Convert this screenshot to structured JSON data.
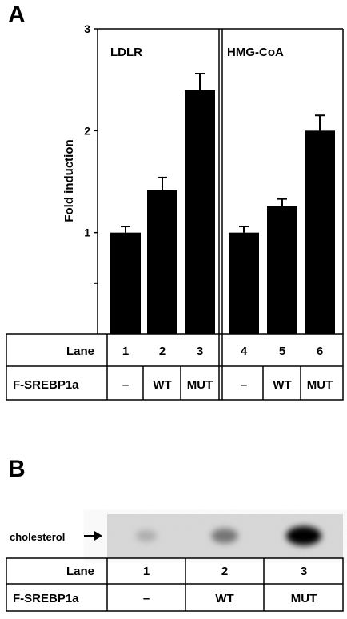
{
  "panel_a": {
    "letter": "A",
    "ylabel": "Fold induction",
    "yticks": [
      "1",
      "2",
      "3"
    ],
    "row_lane_label": "Lane",
    "row_construct_label": "F-SREBP1a",
    "lanes": [
      "1",
      "2",
      "3",
      "4",
      "5",
      "6"
    ],
    "constructs": [
      "–",
      "WT",
      "MUT",
      "–",
      "WT",
      "MUT"
    ]
  },
  "chart_data": {
    "type": "bar",
    "ylim": [
      0,
      3
    ],
    "ylabel": "Fold induction",
    "groups": [
      {
        "name": "LDLR",
        "lanes": [
          "1",
          "2",
          "3"
        ],
        "values": [
          1.0,
          1.42,
          2.4
        ],
        "errors": [
          0.06,
          0.12,
          0.16
        ]
      },
      {
        "name": "HMG-CoA",
        "lanes": [
          "4",
          "5",
          "6"
        ],
        "values": [
          1.0,
          1.26,
          2.0
        ],
        "errors": [
          0.06,
          0.07,
          0.15
        ]
      }
    ],
    "bar_color": "#000000"
  },
  "panel_b": {
    "letter": "B",
    "band_label": "cholesterol",
    "row_lane_label": "Lane",
    "row_construct_label": "F-SREBP1a",
    "lanes": [
      "1",
      "2",
      "3"
    ],
    "constructs": [
      "–",
      "WT",
      "MUT"
    ],
    "band_intensity": [
      0.25,
      0.55,
      1.0
    ]
  }
}
